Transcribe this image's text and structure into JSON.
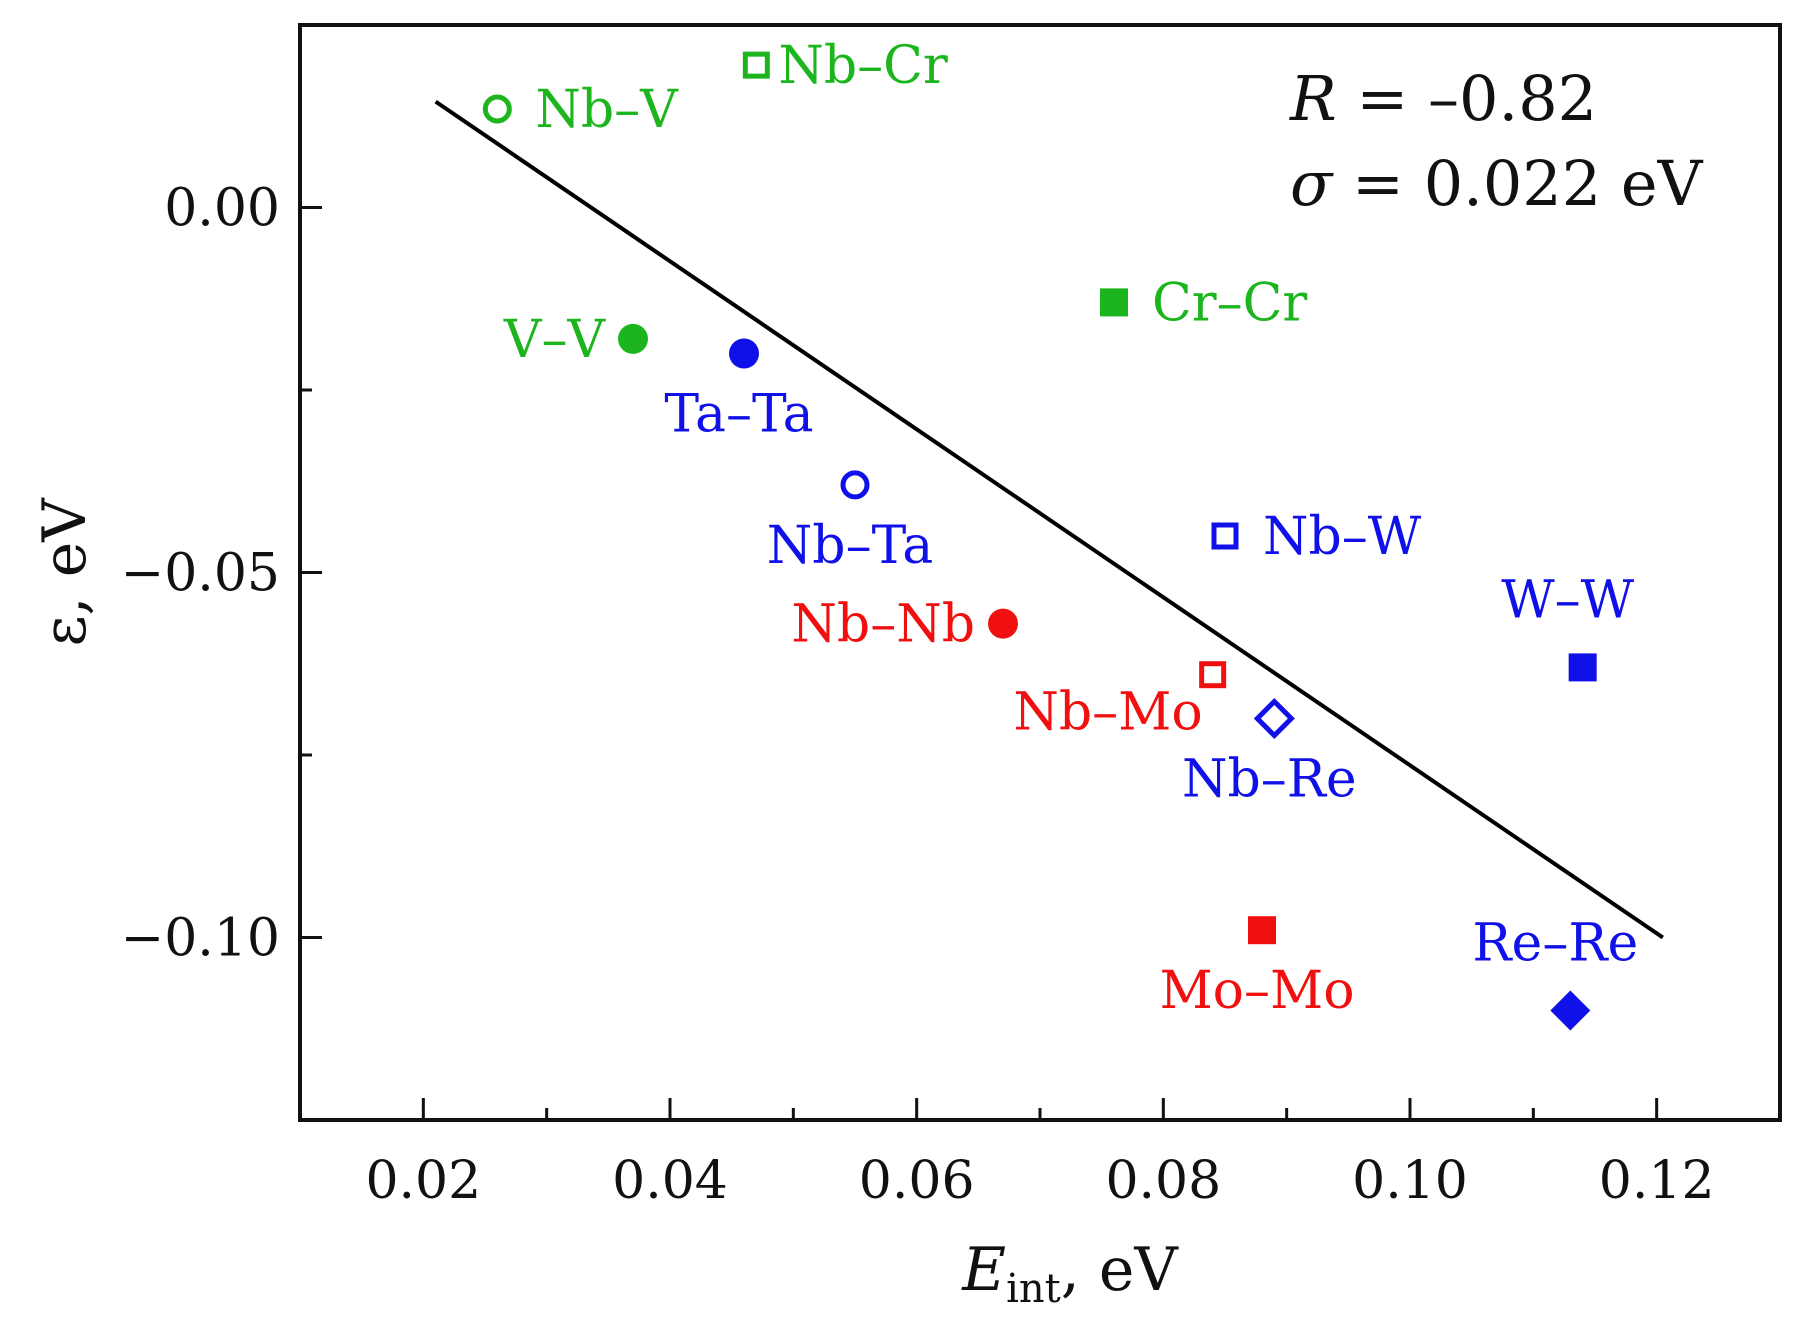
{
  "chart_data": {
    "type": "scatter",
    "xlabel": "E",
    "xlabel_sub": "int",
    "xlabel_unit": ", eV",
    "ylabel": "ε, eV",
    "xlim": [
      0.01,
      0.13
    ],
    "ylim": [
      -0.125,
      0.025
    ],
    "x_ticks": [
      0.02,
      0.04,
      0.06,
      0.08,
      0.1,
      0.12
    ],
    "x_tick_labels": [
      "0.02",
      "0.04",
      "0.06",
      "0.08",
      "0.10",
      "0.12"
    ],
    "x_minor_ticks": [
      0.03,
      0.05,
      0.07,
      0.09,
      0.11
    ],
    "y_ticks": [
      0.0,
      -0.05,
      -0.1
    ],
    "y_tick_labels": [
      "0.00",
      "−0.05",
      "−0.10"
    ],
    "y_minor_ticks": [
      -0.025,
      -0.075
    ],
    "fit_line": {
      "x": [
        0.021,
        0.1205
      ],
      "y": [
        0.0145,
        -0.1
      ]
    },
    "stats": {
      "r_symbol": "R",
      "r_text": " = –0.82",
      "sigma_symbol": "σ",
      "sigma_text": " = 0.022 eV"
    },
    "colors": {
      "green": "#1db51d",
      "blue": "#1010e8",
      "red": "#f01010",
      "line": "#000000"
    },
    "points": [
      {
        "label": "Nb–V",
        "x": 0.026,
        "y": 0.0135,
        "marker": "circle",
        "filled": false,
        "color": "green",
        "label_pos": "right"
      },
      {
        "label": "Nb–Cr",
        "x": 0.047,
        "y": 0.0195,
        "marker": "square",
        "filled": false,
        "color": "green",
        "label_pos": "right-tight"
      },
      {
        "label": "V–V",
        "x": 0.037,
        "y": -0.018,
        "marker": "circle",
        "filled": true,
        "color": "green",
        "label_pos": "left"
      },
      {
        "label": "Cr–Cr",
        "x": 0.076,
        "y": -0.013,
        "marker": "square",
        "filled": true,
        "color": "green",
        "label_pos": "right"
      },
      {
        "label": "Ta–Ta",
        "x": 0.046,
        "y": -0.02,
        "marker": "circle",
        "filled": true,
        "color": "blue",
        "label_pos": "below"
      },
      {
        "label": "Nb–Ta",
        "x": 0.055,
        "y": -0.038,
        "marker": "circle",
        "filled": false,
        "color": "blue",
        "label_pos": "below"
      },
      {
        "label": "Nb–W",
        "x": 0.085,
        "y": -0.045,
        "marker": "square",
        "filled": false,
        "color": "blue",
        "label_pos": "right"
      },
      {
        "label": "W–W",
        "x": 0.114,
        "y": -0.063,
        "marker": "square",
        "filled": true,
        "color": "blue",
        "label_pos": "above"
      },
      {
        "label": "Nb–Re",
        "x": 0.089,
        "y": -0.07,
        "marker": "diamond",
        "filled": false,
        "color": "blue",
        "label_pos": "below"
      },
      {
        "label": "Re–Re",
        "x": 0.113,
        "y": -0.11,
        "marker": "diamond",
        "filled": true,
        "color": "blue",
        "label_pos": "above"
      },
      {
        "label": "Nb–Nb",
        "x": 0.067,
        "y": -0.057,
        "marker": "circle",
        "filled": true,
        "color": "red",
        "label_pos": "left"
      },
      {
        "label": "Nb–Mo",
        "x": 0.084,
        "y": -0.064,
        "marker": "square",
        "filled": false,
        "color": "red",
        "label_pos": "below-left"
      },
      {
        "label": "Mo–Mo",
        "x": 0.088,
        "y": -0.099,
        "marker": "square",
        "filled": true,
        "color": "red",
        "label_pos": "below"
      }
    ]
  }
}
